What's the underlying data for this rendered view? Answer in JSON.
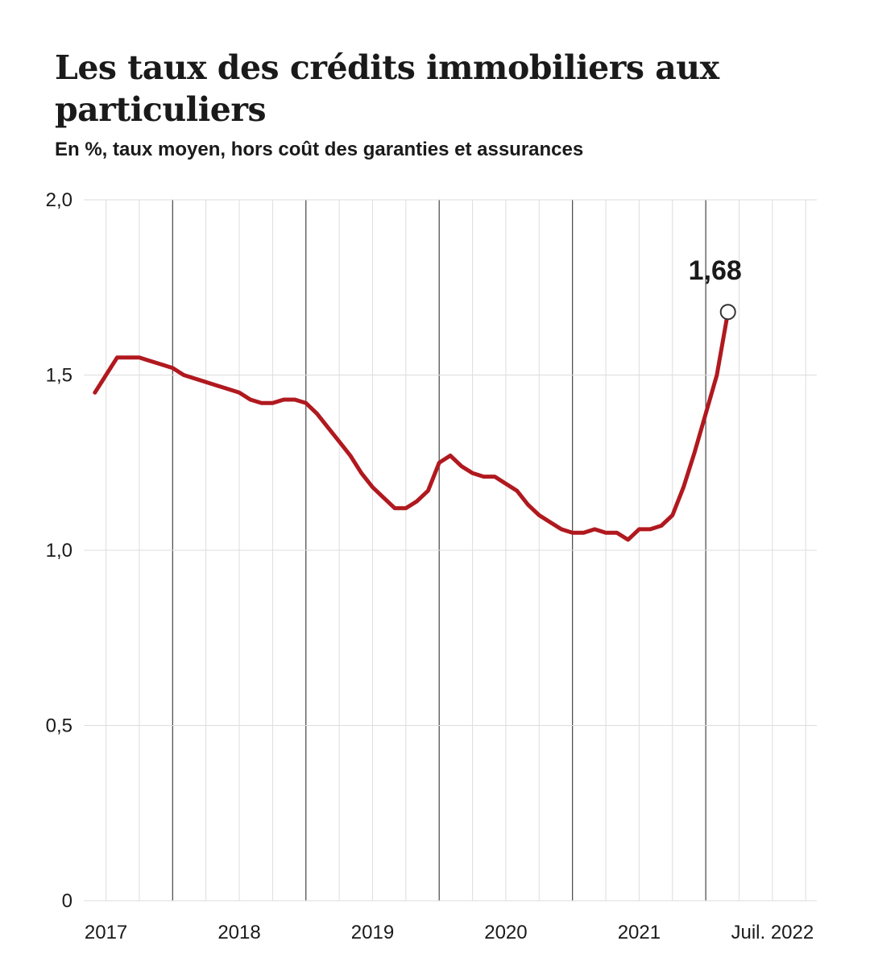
{
  "title": "Les taux des crédits immobiliers aux particuliers",
  "subtitle": "En %, taux moyen, hors coût des garanties et assurances",
  "colors": {
    "line": "#b0191f",
    "grid": "#dddddd",
    "year_grid": "#444444",
    "text": "#1a1a1a"
  },
  "chart_data": {
    "type": "line",
    "title": "Les taux des crédits immobiliers aux particuliers",
    "subtitle": "En %, taux moyen, hors coût des garanties et assurances",
    "xlabel": "",
    "ylabel": "",
    "ylim": [
      0,
      2.0
    ],
    "y_ticks": [
      "0",
      "0,5",
      "1,0",
      "1,5",
      "2,0"
    ],
    "y_tick_values": [
      0,
      0.5,
      1.0,
      1.5,
      2.0
    ],
    "x_tick_labels": [
      "2017",
      "2018",
      "2019",
      "2020",
      "2021",
      "Juil. 2022"
    ],
    "grid": true,
    "last_value_label": "1,68",
    "series": [
      {
        "values": [
          1.45,
          1.5,
          1.55,
          1.55,
          1.55,
          1.54,
          1.53,
          1.52,
          1.5,
          1.49,
          1.48,
          1.47,
          1.46,
          1.45,
          1.43,
          1.42,
          1.42,
          1.43,
          1.43,
          1.42,
          1.39,
          1.35,
          1.31,
          1.27,
          1.22,
          1.18,
          1.15,
          1.12,
          1.12,
          1.14,
          1.17,
          1.25,
          1.27,
          1.24,
          1.22,
          1.21,
          1.21,
          1.19,
          1.17,
          1.13,
          1.1,
          1.08,
          1.06,
          1.05,
          1.05,
          1.06,
          1.05,
          1.05,
          1.03,
          1.06,
          1.06,
          1.07,
          1.1,
          1.18,
          1.28,
          1.39,
          1.5,
          1.68
        ]
      }
    ]
  }
}
